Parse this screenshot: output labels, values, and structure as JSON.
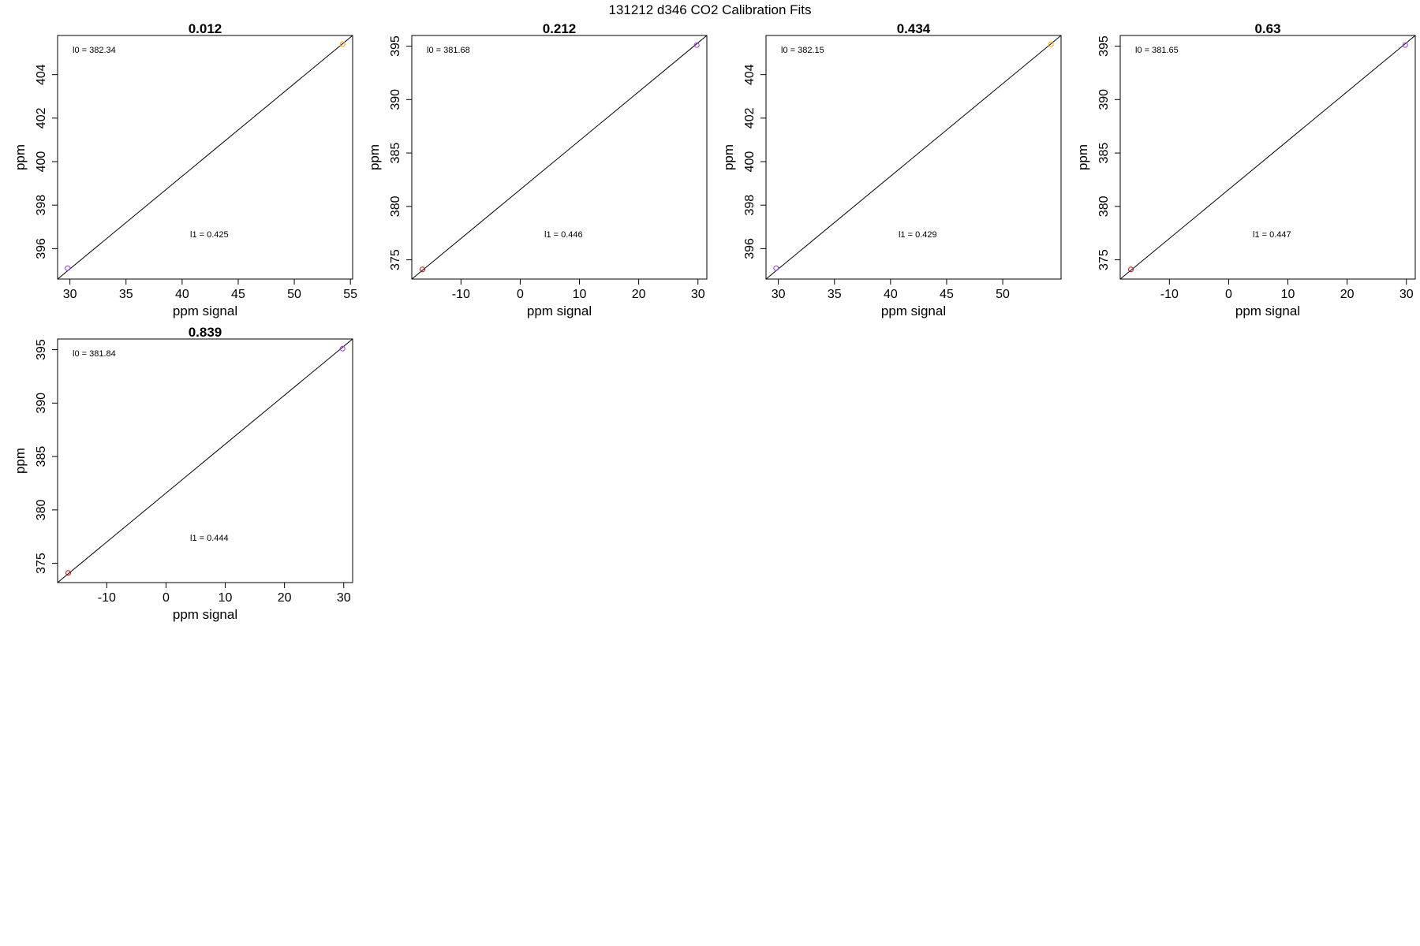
{
  "figure": {
    "title": "131212   d346   CO2 Calibration Fits"
  },
  "colors": {
    "axis": "#000000",
    "fit_line": "#000000",
    "point_low": "#9b30ff",
    "point_high": "#ffa500",
    "point_red": "#cc0000"
  },
  "chart_data": [
    {
      "type": "scatter",
      "title": "0.012",
      "xlabel": "ppm signal",
      "ylabel": "ppm",
      "xlim": [
        28.9,
        55.2
      ],
      "ylim": [
        394.6,
        405.8
      ],
      "xticks": [
        "30",
        "35",
        "40",
        "45",
        "50",
        "55"
      ],
      "yticks": [
        "396",
        "398",
        "400",
        "402",
        "404"
      ],
      "points": [
        {
          "x": 29.8,
          "y": 395.1,
          "color": "point_low"
        },
        {
          "x": 54.3,
          "y": 405.4,
          "color": "point_high"
        }
      ],
      "fit_line": [
        [
          28.9,
          394.6
        ],
        [
          55.2,
          405.8
        ]
      ],
      "annotations": {
        "l0": "l0 =  382.34",
        "l1": "l1 =  0.425"
      }
    },
    {
      "type": "scatter",
      "title": "0.212",
      "xlabel": "ppm signal",
      "ylabel": "ppm",
      "xlim": [
        -18.3,
        31.5
      ],
      "ylim": [
        373.2,
        396.0
      ],
      "xticks": [
        "-10",
        "0",
        "10",
        "20",
        "30"
      ],
      "yticks": [
        "375",
        "380",
        "385",
        "390",
        "395"
      ],
      "points": [
        {
          "x": -16.5,
          "y": 374.1,
          "color": "point_red"
        },
        {
          "x": 29.8,
          "y": 395.1,
          "color": "point_low"
        }
      ],
      "fit_line": [
        [
          -18.3,
          373.2
        ],
        [
          31.5,
          396.0
        ]
      ],
      "annotations": {
        "l0": "l0 =  381.68",
        "l1": "l1 =  0.446"
      }
    },
    {
      "type": "scatter",
      "title": "0.434",
      "xlabel": "ppm signal",
      "ylabel": "ppm",
      "xlim": [
        28.9,
        55.2
      ],
      "ylim": [
        394.6,
        405.8
      ],
      "xticks": [
        "30",
        "35",
        "40",
        "45",
        "50"
      ],
      "yticks": [
        "396",
        "398",
        "400",
        "402",
        "404"
      ],
      "points": [
        {
          "x": 29.8,
          "y": 395.1,
          "color": "point_low"
        },
        {
          "x": 54.3,
          "y": 405.4,
          "color": "point_high"
        }
      ],
      "fit_line": [
        [
          28.9,
          394.6
        ],
        [
          55.2,
          405.8
        ]
      ],
      "annotations": {
        "l0": "l0 =  382.15",
        "l1": "l1 =  0.429"
      }
    },
    {
      "type": "scatter",
      "title": "0.63",
      "xlabel": "ppm signal",
      "ylabel": "ppm",
      "xlim": [
        -18.3,
        31.5
      ],
      "ylim": [
        373.2,
        396.0
      ],
      "xticks": [
        "-10",
        "0",
        "10",
        "20",
        "30"
      ],
      "yticks": [
        "375",
        "380",
        "385",
        "390",
        "395"
      ],
      "points": [
        {
          "x": -16.5,
          "y": 374.1,
          "color": "point_red"
        },
        {
          "x": 29.8,
          "y": 395.1,
          "color": "point_low"
        }
      ],
      "fit_line": [
        [
          -18.3,
          373.2
        ],
        [
          31.5,
          396.0
        ]
      ],
      "annotations": {
        "l0": "l0 =  381.65",
        "l1": "l1 =  0.447"
      }
    },
    {
      "type": "scatter",
      "title": "0.839",
      "xlabel": "ppm signal",
      "ylabel": "ppm",
      "xlim": [
        -18.3,
        31.5
      ],
      "ylim": [
        373.2,
        396.0
      ],
      "xticks": [
        "-10",
        "0",
        "10",
        "20",
        "30"
      ],
      "yticks": [
        "375",
        "380",
        "385",
        "390",
        "395"
      ],
      "points": [
        {
          "x": -16.5,
          "y": 374.1,
          "color": "point_red"
        },
        {
          "x": 29.8,
          "y": 395.1,
          "color": "point_low"
        }
      ],
      "fit_line": [
        [
          -18.3,
          373.2
        ],
        [
          31.5,
          396.0
        ]
      ],
      "annotations": {
        "l0": "l0 =  381.84",
        "l1": "l1 =  0.444"
      }
    }
  ]
}
